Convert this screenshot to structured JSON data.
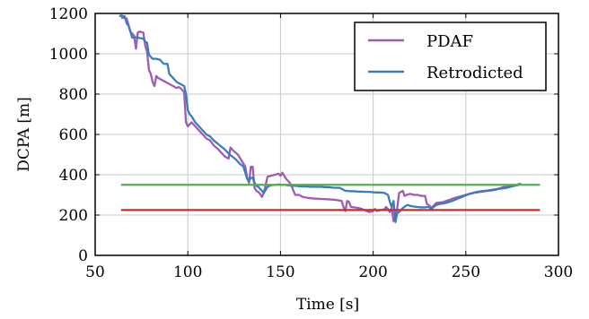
{
  "chart_data": {
    "type": "line",
    "xlabel": "Time [s]",
    "ylabel": "DCPA [m]",
    "xlim": [
      50,
      300
    ],
    "ylim": [
      0,
      1200
    ],
    "xticks": [
      50,
      100,
      150,
      200,
      250,
      300
    ],
    "yticks": [
      0,
      200,
      400,
      600,
      800,
      1000,
      1200
    ],
    "grid": true,
    "legend_position": "top-right",
    "series": [
      {
        "name": "PDAF",
        "color": "#a05cb0",
        "points": [
          [
            64,
            1180
          ],
          [
            67,
            1175
          ],
          [
            69,
            1110
          ],
          [
            71,
            1090
          ],
          [
            72,
            1025
          ],
          [
            73,
            1105
          ],
          [
            74,
            1110
          ],
          [
            76,
            1105
          ],
          [
            77,
            1040
          ],
          [
            78,
            1010
          ],
          [
            79,
            920
          ],
          [
            80,
            900
          ],
          [
            81,
            860
          ],
          [
            82,
            840
          ],
          [
            83,
            890
          ],
          [
            84,
            880
          ],
          [
            86,
            870
          ],
          [
            88,
            860
          ],
          [
            90,
            850
          ],
          [
            92,
            840
          ],
          [
            94,
            830
          ],
          [
            95,
            835
          ],
          [
            96,
            830
          ],
          [
            97,
            820
          ],
          [
            98,
            810
          ],
          [
            99,
            660
          ],
          [
            100,
            640
          ],
          [
            101,
            650
          ],
          [
            102,
            660
          ],
          [
            104,
            640
          ],
          [
            106,
            620
          ],
          [
            108,
            600
          ],
          [
            110,
            580
          ],
          [
            112,
            570
          ],
          [
            114,
            545
          ],
          [
            116,
            530
          ],
          [
            118,
            510
          ],
          [
            120,
            490
          ],
          [
            122,
            480
          ],
          [
            123,
            535
          ],
          [
            125,
            515
          ],
          [
            127,
            500
          ],
          [
            129,
            470
          ],
          [
            131,
            440
          ],
          [
            132,
            385
          ],
          [
            133,
            360
          ],
          [
            134,
            440
          ],
          [
            135,
            440
          ],
          [
            136,
            335
          ],
          [
            137,
            320
          ],
          [
            138,
            315
          ],
          [
            139,
            305
          ],
          [
            140,
            290
          ],
          [
            141,
            310
          ],
          [
            142,
            350
          ],
          [
            143,
            390
          ],
          [
            145,
            395
          ],
          [
            147,
            400
          ],
          [
            149,
            405
          ],
          [
            150,
            395
          ],
          [
            151,
            410
          ],
          [
            152,
            395
          ],
          [
            153,
            380
          ],
          [
            154,
            370
          ],
          [
            155,
            360
          ],
          [
            156,
            345
          ],
          [
            157,
            320
          ],
          [
            158,
            300
          ],
          [
            160,
            300
          ],
          [
            162,
            290
          ],
          [
            165,
            285
          ],
          [
            168,
            282
          ],
          [
            172,
            280
          ],
          [
            176,
            278
          ],
          [
            180,
            275
          ],
          [
            183,
            270
          ],
          [
            184,
            240
          ],
          [
            185,
            220
          ],
          [
            186,
            270
          ],
          [
            187,
            265
          ],
          [
            188,
            240
          ],
          [
            190,
            238
          ],
          [
            192,
            235
          ],
          [
            194,
            230
          ],
          [
            196,
            222
          ],
          [
            198,
            215
          ],
          [
            200,
            220
          ],
          [
            201,
            230
          ],
          [
            202,
            220
          ],
          [
            204,
            225
          ],
          [
            206,
            228
          ],
          [
            207,
            240
          ],
          [
            208,
            230
          ],
          [
            209,
            215
          ],
          [
            210,
            235
          ],
          [
            211,
            170
          ],
          [
            212,
            180
          ],
          [
            213,
            235
          ],
          [
            214,
            310
          ],
          [
            215,
            315
          ],
          [
            216,
            320
          ],
          [
            217,
            295
          ],
          [
            218,
            300
          ],
          [
            220,
            305
          ],
          [
            222,
            300
          ],
          [
            224,
            300
          ],
          [
            226,
            295
          ],
          [
            228,
            295
          ],
          [
            229,
            255
          ],
          [
            230,
            250
          ],
          [
            231,
            240
          ],
          [
            232,
            240
          ],
          [
            234,
            260
          ],
          [
            236,
            262
          ],
          [
            238,
            265
          ],
          [
            240,
            272
          ],
          [
            242,
            278
          ],
          [
            244,
            285
          ],
          [
            246,
            290
          ],
          [
            248,
            295
          ],
          [
            250,
            300
          ],
          [
            252,
            305
          ],
          [
            254,
            310
          ],
          [
            256,
            312
          ],
          [
            258,
            315
          ],
          [
            260,
            318
          ],
          [
            262,
            320
          ],
          [
            264,
            322
          ],
          [
            266,
            325
          ],
          [
            268,
            332
          ],
          [
            270,
            338
          ],
          [
            272,
            340
          ],
          [
            274,
            342
          ],
          [
            276,
            345
          ],
          [
            278,
            348
          ],
          [
            279,
            358
          ]
        ]
      },
      {
        "name": "Retrodicted",
        "color": "#3a7dbe",
        "points": [
          [
            63,
            1185
          ],
          [
            64,
            1190
          ],
          [
            66,
            1185
          ],
          [
            67,
            1150
          ],
          [
            68,
            1140
          ],
          [
            70,
            1080
          ],
          [
            72,
            1082
          ],
          [
            74,
            1078
          ],
          [
            76,
            1075
          ],
          [
            77,
            1060
          ],
          [
            78,
            1055
          ],
          [
            79,
            995
          ],
          [
            80,
            985
          ],
          [
            81,
            975
          ],
          [
            83,
            975
          ],
          [
            85,
            970
          ],
          [
            87,
            950
          ],
          [
            89,
            950
          ],
          [
            90,
            900
          ],
          [
            92,
            880
          ],
          [
            94,
            860
          ],
          [
            96,
            850
          ],
          [
            98,
            840
          ],
          [
            99,
            800
          ],
          [
            100,
            720
          ],
          [
            101,
            700
          ],
          [
            102,
            690
          ],
          [
            104,
            660
          ],
          [
            106,
            640
          ],
          [
            108,
            620
          ],
          [
            110,
            600
          ],
          [
            112,
            590
          ],
          [
            114,
            570
          ],
          [
            116,
            555
          ],
          [
            118,
            540
          ],
          [
            120,
            525
          ],
          [
            122,
            505
          ],
          [
            124,
            490
          ],
          [
            126,
            475
          ],
          [
            128,
            455
          ],
          [
            130,
            440
          ],
          [
            131,
            410
          ],
          [
            132,
            380
          ],
          [
            133,
            370
          ],
          [
            134,
            385
          ],
          [
            135,
            385
          ],
          [
            136,
            360
          ],
          [
            137,
            345
          ],
          [
            138,
            340
          ],
          [
            139,
            330
          ],
          [
            140,
            320
          ],
          [
            141,
            310
          ],
          [
            142,
            325
          ],
          [
            143,
            340
          ],
          [
            145,
            348
          ],
          [
            147,
            350
          ],
          [
            149,
            352
          ],
          [
            150,
            350
          ],
          [
            152,
            350
          ],
          [
            154,
            348
          ],
          [
            156,
            345
          ],
          [
            158,
            345
          ],
          [
            160,
            343
          ],
          [
            162,
            342
          ],
          [
            164,
            342
          ],
          [
            166,
            340
          ],
          [
            168,
            340
          ],
          [
            170,
            340
          ],
          [
            172,
            340
          ],
          [
            174,
            338
          ],
          [
            176,
            338
          ],
          [
            178,
            336
          ],
          [
            180,
            335
          ],
          [
            182,
            335
          ],
          [
            183,
            330
          ],
          [
            184,
            325
          ],
          [
            185,
            320
          ],
          [
            186,
            320
          ],
          [
            188,
            318
          ],
          [
            190,
            318
          ],
          [
            192,
            316
          ],
          [
            194,
            316
          ],
          [
            196,
            315
          ],
          [
            198,
            315
          ],
          [
            200,
            313
          ],
          [
            202,
            312
          ],
          [
            204,
            312
          ],
          [
            206,
            310
          ],
          [
            208,
            300
          ],
          [
            209,
            265
          ],
          [
            210,
            240
          ],
          [
            211,
            270
          ],
          [
            212,
            165
          ],
          [
            213,
            210
          ],
          [
            214,
            215
          ],
          [
            216,
            235
          ],
          [
            218,
            248
          ],
          [
            219,
            250
          ],
          [
            220,
            245
          ],
          [
            222,
            242
          ],
          [
            224,
            240
          ],
          [
            226,
            238
          ],
          [
            228,
            238
          ],
          [
            229,
            240
          ],
          [
            230,
            240
          ],
          [
            231,
            232
          ],
          [
            232,
            235
          ],
          [
            234,
            250
          ],
          [
            236,
            255
          ],
          [
            238,
            258
          ],
          [
            240,
            262
          ],
          [
            242,
            268
          ],
          [
            244,
            275
          ],
          [
            246,
            283
          ],
          [
            248,
            290
          ],
          [
            250,
            298
          ],
          [
            252,
            305
          ],
          [
            254,
            310
          ],
          [
            256,
            315
          ],
          [
            258,
            318
          ],
          [
            260,
            320
          ],
          [
            262,
            322
          ],
          [
            264,
            325
          ],
          [
            266,
            328
          ],
          [
            268,
            330
          ],
          [
            270,
            332
          ],
          [
            272,
            335
          ],
          [
            274,
            340
          ],
          [
            276,
            345
          ],
          [
            278,
            350
          ],
          [
            280,
            355
          ]
        ]
      },
      {
        "color": "#4db34a",
        "points": [
          [
            64,
            350
          ],
          [
            290,
            350
          ]
        ]
      },
      {
        "color": "#d62728",
        "points": [
          [
            64,
            225
          ],
          [
            290,
            225
          ]
        ]
      }
    ]
  }
}
